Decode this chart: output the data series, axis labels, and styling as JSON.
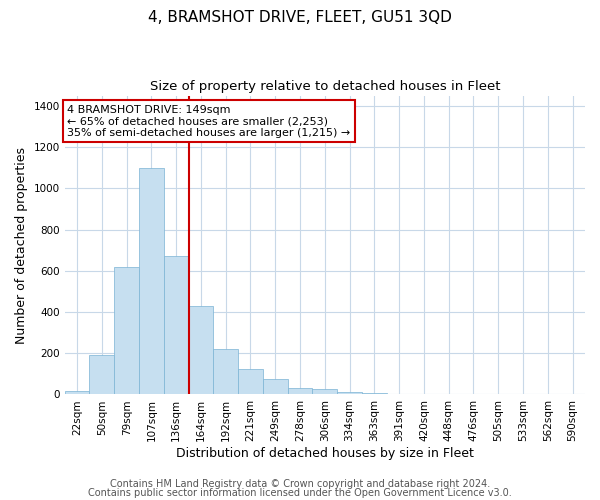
{
  "title": "4, BRAMSHOT DRIVE, FLEET, GU51 3QD",
  "subtitle": "Size of property relative to detached houses in Fleet",
  "xlabel": "Distribution of detached houses by size in Fleet",
  "ylabel": "Number of detached properties",
  "bar_labels": [
    "22sqm",
    "50sqm",
    "79sqm",
    "107sqm",
    "136sqm",
    "164sqm",
    "192sqm",
    "221sqm",
    "249sqm",
    "278sqm",
    "306sqm",
    "334sqm",
    "363sqm",
    "391sqm",
    "420sqm",
    "448sqm",
    "476sqm",
    "505sqm",
    "533sqm",
    "562sqm",
    "590sqm"
  ],
  "bar_heights": [
    15,
    190,
    620,
    1100,
    670,
    430,
    220,
    125,
    75,
    30,
    25,
    10,
    5,
    2,
    2,
    1,
    0,
    0,
    0,
    0,
    0
  ],
  "bar_color": "#c6dff0",
  "bar_edgecolor": "#7ab3d4",
  "vline_color": "#cc0000",
  "vline_x": 4.5,
  "annotation_text": "4 BRAMSHOT DRIVE: 149sqm\n← 65% of detached houses are smaller (2,253)\n35% of semi-detached houses are larger (1,215) →",
  "annotation_box_color": "#ffffff",
  "annotation_box_edgecolor": "#cc0000",
  "ylim": [
    0,
    1450
  ],
  "yticks": [
    0,
    200,
    400,
    600,
    800,
    1000,
    1200,
    1400
  ],
  "footnote1": "Contains HM Land Registry data © Crown copyright and database right 2024.",
  "footnote2": "Contains public sector information licensed under the Open Government Licence v3.0.",
  "background_color": "#ffffff",
  "grid_color": "#c8d8e8",
  "title_fontsize": 11,
  "subtitle_fontsize": 9.5,
  "axis_label_fontsize": 9,
  "tick_fontsize": 7.5,
  "annotation_fontsize": 8,
  "footnote_fontsize": 7
}
